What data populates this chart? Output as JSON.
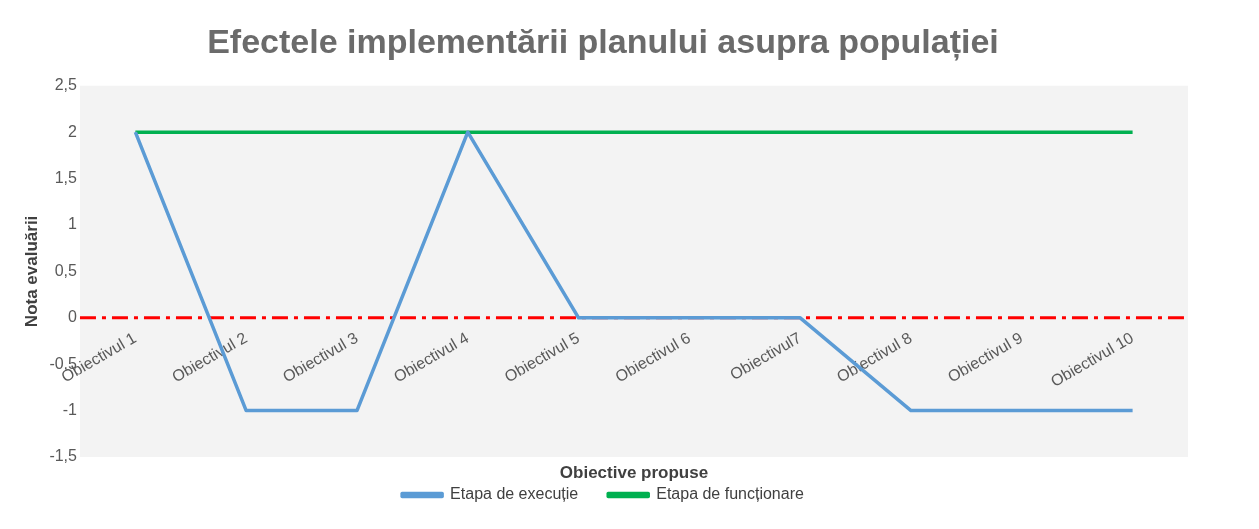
{
  "chart_data": {
    "type": "line",
    "title": "Efectele implementării planului asupra populației",
    "xlabel": "Obiective propuse",
    "ylabel": "Nota evaluării",
    "categories": [
      "Obiectivul 1",
      "Obiectivul 2",
      "Obiectivul 3",
      "Obiectivul 4",
      "Obiectivul 5",
      "Obiectivul 6",
      "Obiectivul7",
      "Obiectivul 8",
      "Obiectivul 9",
      "Obiectivul 10"
    ],
    "series": [
      {
        "name": "Etapa de execuție",
        "color": "#5b9bd5",
        "values": [
          2,
          -1,
          -1,
          2,
          0,
          0,
          0,
          -1,
          -1,
          -1
        ]
      },
      {
        "name": "Etapa de funcționare",
        "color": "#00b050",
        "values": [
          2,
          2,
          2,
          2,
          2,
          2,
          2,
          2,
          2,
          2
        ]
      }
    ],
    "ylim": [
      -1.5,
      2.5
    ],
    "yticks": [
      {
        "value": 2.5,
        "label": "2,5"
      },
      2,
      {
        "value": 1.5,
        "label": "1,5"
      },
      1,
      {
        "value": 0.5,
        "label": "0,5"
      },
      0,
      {
        "value": -0.5,
        "label": "-0,5"
      },
      -1,
      {
        "value": -1.5,
        "label": "-1,5"
      }
    ],
    "ref_lines": [
      {
        "axis": "y",
        "value": 0,
        "color": "#ff0000",
        "line_style": "dashed"
      }
    ],
    "legend": "bottom",
    "marker": "none",
    "line_style": "solid",
    "grid": false
  }
}
